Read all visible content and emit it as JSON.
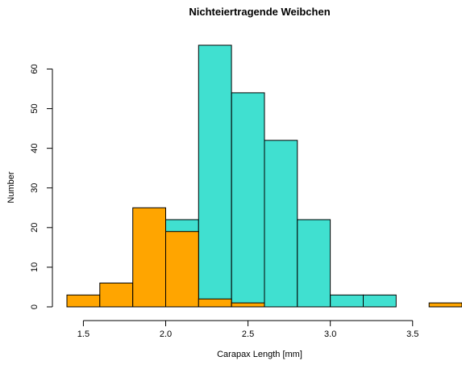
{
  "chart_data": {
    "type": "histogram",
    "title": "Nichteiertragende Weibchen",
    "xlabel": "Carapax Length [mm]",
    "ylabel": "Number",
    "x_ticks": [
      "1.5",
      "2.0",
      "2.5",
      "3.0",
      "3.5"
    ],
    "x_tick_values": [
      1.5,
      2.0,
      2.5,
      3.0,
      3.5
    ],
    "y_ticks": [
      "0",
      "10",
      "20",
      "30",
      "40",
      "50",
      "60"
    ],
    "y_tick_values": [
      0,
      10,
      20,
      30,
      40,
      50,
      60
    ],
    "xlim": [
      1.4,
      3.8
    ],
    "ylim": [
      0,
      66
    ],
    "grid": false,
    "series": [
      {
        "color": "#40E0D0",
        "bins": [
          {
            "x0": 2.0,
            "x1": 2.2,
            "value": 22
          },
          {
            "x0": 2.2,
            "x1": 2.4,
            "value": 66
          },
          {
            "x0": 2.4,
            "x1": 2.6,
            "value": 54
          },
          {
            "x0": 2.6,
            "x1": 2.8,
            "value": 42
          },
          {
            "x0": 2.8,
            "x1": 3.0,
            "value": 22
          },
          {
            "x0": 3.0,
            "x1": 3.2,
            "value": 3
          },
          {
            "x0": 3.2,
            "x1": 3.4,
            "value": 3
          }
        ]
      },
      {
        "color": "#FFA500",
        "bins": [
          {
            "x0": 1.4,
            "x1": 1.6,
            "value": 3
          },
          {
            "x0": 1.6,
            "x1": 1.8,
            "value": 6
          },
          {
            "x0": 1.8,
            "x1": 2.0,
            "value": 25
          },
          {
            "x0": 2.0,
            "x1": 2.2,
            "value": 19
          },
          {
            "x0": 2.2,
            "x1": 2.4,
            "value": 2
          },
          {
            "x0": 2.4,
            "x1": 2.6,
            "value": 1
          },
          {
            "x0": 3.6,
            "x1": 3.8,
            "value": 1
          }
        ]
      }
    ]
  }
}
